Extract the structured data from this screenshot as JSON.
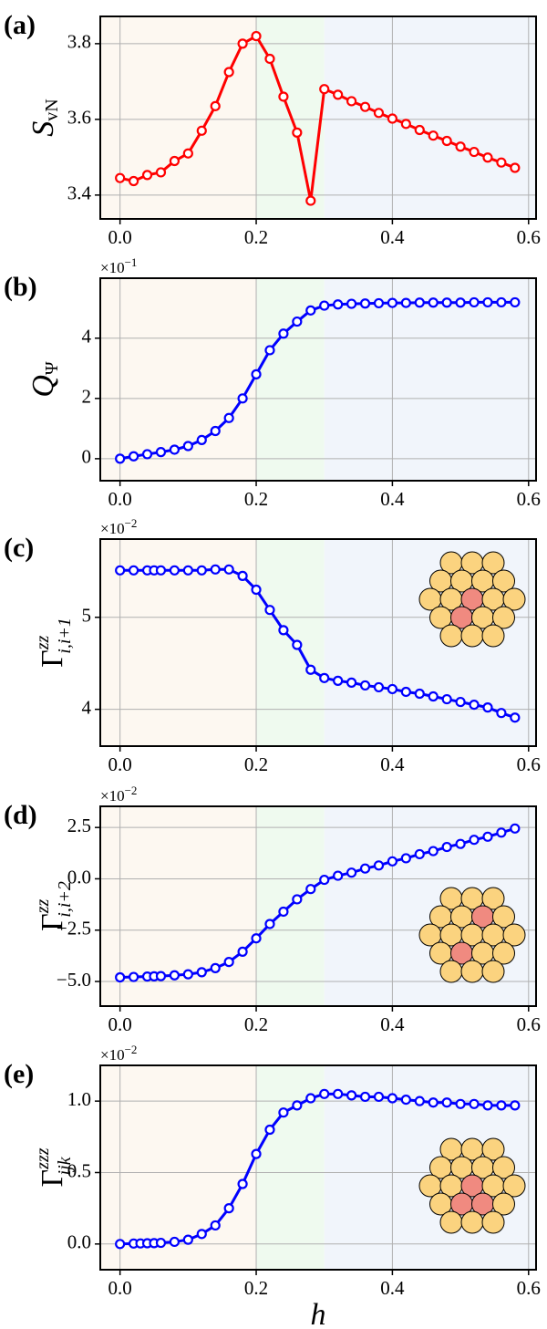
{
  "chart_data": [
    {
      "type": "line",
      "panel_label": "(a)",
      "ylabel": "S",
      "ylabel_sub": "vN",
      "x": [
        0,
        0.02,
        0.04,
        0.06,
        0.08,
        0.1,
        0.12,
        0.14,
        0.16,
        0.18,
        0.2,
        0.22,
        0.24,
        0.26,
        0.28,
        0.3,
        0.32,
        0.34,
        0.36,
        0.38,
        0.4,
        0.42,
        0.44,
        0.46,
        0.48,
        0.5,
        0.52,
        0.54,
        0.56,
        0.58
      ],
      "values": [
        3.445,
        3.437,
        3.453,
        3.46,
        3.49,
        3.51,
        3.57,
        3.635,
        3.725,
        3.8,
        3.82,
        3.76,
        3.66,
        3.565,
        3.385,
        3.68,
        3.665,
        3.648,
        3.633,
        3.617,
        3.602,
        3.588,
        3.572,
        3.557,
        3.543,
        3.528,
        3.514,
        3.499,
        3.486,
        3.472
      ],
      "color": "#ff0000",
      "xlim": [
        -0.029,
        0.611
      ],
      "ylim": [
        3.337,
        3.872
      ],
      "xticks": [
        {
          "value": 0,
          "label": "0.0"
        },
        {
          "value": 0.2,
          "label": "0.2"
        },
        {
          "value": 0.4,
          "label": "0.4"
        },
        {
          "value": 0.6,
          "label": "0.6"
        }
      ],
      "yticks": [
        3.4,
        3.6,
        3.8
      ],
      "grid": true,
      "region_bounds": [
        0.2,
        0.3
      ],
      "region_colors": [
        "#fdf8f1",
        "#effaef",
        "#f1f5fb"
      ]
    },
    {
      "type": "line",
      "panel_label": "(b)",
      "ylabel": "Q",
      "ylabel_sub": "Ψ",
      "offset_text": "×10",
      "offset_exp": "−1",
      "x": [
        0,
        0.02,
        0.04,
        0.06,
        0.08,
        0.1,
        0.12,
        0.14,
        0.16,
        0.18,
        0.2,
        0.22,
        0.24,
        0.26,
        0.28,
        0.3,
        0.32,
        0.34,
        0.36,
        0.38,
        0.4,
        0.42,
        0.44,
        0.46,
        0.48,
        0.5,
        0.52,
        0.54,
        0.56,
        0.58
      ],
      "values": [
        0,
        0.08,
        0.15,
        0.22,
        0.3,
        0.42,
        0.62,
        0.92,
        1.35,
        2.0,
        2.8,
        3.6,
        4.15,
        4.55,
        4.92,
        5.08,
        5.12,
        5.14,
        5.15,
        5.16,
        5.17,
        5.17,
        5.18,
        5.18,
        5.18,
        5.18,
        5.19,
        5.19,
        5.19,
        5.19
      ],
      "color": "#0000ff",
      "xlim": [
        -0.029,
        0.611
      ],
      "ylim": [
        -0.73,
        5.99
      ],
      "xticks": [
        {
          "value": 0,
          "label": "0.0"
        },
        {
          "value": 0.2,
          "label": "0.2"
        },
        {
          "value": 0.4,
          "label": "0.4"
        },
        {
          "value": 0.6,
          "label": "0.6"
        }
      ],
      "yticks": [
        0,
        2,
        4
      ],
      "grid": true,
      "region_bounds": [
        0.2,
        0.3
      ],
      "region_colors": [
        "#fdf8f1",
        "#effaef",
        "#f1f5fb"
      ]
    },
    {
      "type": "line",
      "panel_label": "(c)",
      "ylabel": "Γ",
      "ylabel_sup": "zz",
      "ylabel_sub": "i,i+1",
      "offset_text": "×10",
      "offset_exp": "−2",
      "x": [
        0,
        0.02,
        0.04,
        0.05,
        0.06,
        0.08,
        0.1,
        0.12,
        0.14,
        0.16,
        0.18,
        0.2,
        0.22,
        0.24,
        0.26,
        0.28,
        0.3,
        0.32,
        0.34,
        0.36,
        0.38,
        0.4,
        0.42,
        0.44,
        0.46,
        0.48,
        0.5,
        0.52,
        0.54,
        0.56,
        0.58
      ],
      "values": [
        5.51,
        5.51,
        5.51,
        5.51,
        5.51,
        5.51,
        5.51,
        5.51,
        5.52,
        5.52,
        5.45,
        5.3,
        5.08,
        4.86,
        4.7,
        4.43,
        4.34,
        4.31,
        4.29,
        4.26,
        4.24,
        4.22,
        4.19,
        4.17,
        4.14,
        4.11,
        4.08,
        4.05,
        4.02,
        3.96,
        3.91
      ],
      "color": "#0000ff",
      "xlim": [
        -0.029,
        0.611
      ],
      "ylim": [
        3.6,
        5.85
      ],
      "xticks": [
        {
          "value": 0,
          "label": "0.0"
        },
        {
          "value": 0.2,
          "label": "0.2"
        },
        {
          "value": 0.4,
          "label": "0.4"
        },
        {
          "value": 0.6,
          "label": "0.6"
        }
      ],
      "yticks": [
        4,
        5
      ],
      "grid": true,
      "region_bounds": [
        0.2,
        0.3
      ],
      "region_colors": [
        "#fdf8f1",
        "#effaef",
        "#f1f5fb"
      ]
    },
    {
      "type": "line",
      "panel_label": "(d)",
      "ylabel": "Γ",
      "ylabel_sup": "zz",
      "ylabel_sub": "i,i+2",
      "offset_text": "×10",
      "offset_exp": "−2",
      "x": [
        0,
        0.02,
        0.04,
        0.05,
        0.06,
        0.08,
        0.1,
        0.12,
        0.14,
        0.16,
        0.18,
        0.2,
        0.22,
        0.24,
        0.26,
        0.28,
        0.3,
        0.32,
        0.34,
        0.36,
        0.38,
        0.4,
        0.42,
        0.44,
        0.46,
        0.48,
        0.5,
        0.52,
        0.54,
        0.56,
        0.58
      ],
      "values": [
        -4.8,
        -4.78,
        -4.76,
        -4.75,
        -4.74,
        -4.7,
        -4.65,
        -4.55,
        -4.35,
        -4.05,
        -3.55,
        -2.9,
        -2.2,
        -1.6,
        -1.0,
        -0.5,
        -0.05,
        0.15,
        0.3,
        0.5,
        0.65,
        0.85,
        1.0,
        1.2,
        1.35,
        1.55,
        1.7,
        1.9,
        2.05,
        2.25,
        2.45
      ],
      "color": "#0000ff",
      "xlim": [
        -0.029,
        0.611
      ],
      "ylim": [
        -6.2,
        3.53
      ],
      "xticks": [
        {
          "value": 0,
          "label": "0.0"
        },
        {
          "value": 0.2,
          "label": "0.2"
        },
        {
          "value": 0.4,
          "label": "0.4"
        },
        {
          "value": 0.6,
          "label": "0.6"
        }
      ],
      "yticks": [
        {
          "value": -5,
          "label": "−5.0"
        },
        {
          "value": -2.5,
          "label": "−2.5"
        },
        {
          "value": 0,
          "label": "0.0"
        },
        2.5
      ],
      "grid": true,
      "region_bounds": [
        0.2,
        0.3
      ],
      "region_colors": [
        "#fdf8f1",
        "#effaef",
        "#f1f5fb"
      ]
    },
    {
      "type": "line",
      "panel_label": "(e)",
      "ylabel": "Γ",
      "ylabel_sup": "zzz",
      "ylabel_sub": "ijk",
      "offset_text": "×10",
      "offset_exp": "−2",
      "xlabel": "h",
      "x": [
        0,
        0.02,
        0.03,
        0.04,
        0.05,
        0.06,
        0.08,
        0.1,
        0.12,
        0.14,
        0.16,
        0.18,
        0.2,
        0.22,
        0.24,
        0.26,
        0.28,
        0.3,
        0.32,
        0.34,
        0.36,
        0.38,
        0.4,
        0.42,
        0.44,
        0.46,
        0.48,
        0.5,
        0.52,
        0.54,
        0.56,
        0.58
      ],
      "values": [
        0,
        0.003,
        0.004,
        0.005,
        0.006,
        0.008,
        0.015,
        0.03,
        0.07,
        0.13,
        0.25,
        0.42,
        0.63,
        0.8,
        0.92,
        0.97,
        1.02,
        1.05,
        1.05,
        1.04,
        1.03,
        1.03,
        1.02,
        1.01,
        1.0,
        0.99,
        0.99,
        0.98,
        0.98,
        0.97,
        0.97,
        0.97
      ],
      "color": "#0000ff",
      "xlim": [
        -0.029,
        0.611
      ],
      "ylim": [
        -0.18,
        1.25
      ],
      "xticks": [
        {
          "value": 0,
          "label": "0.0"
        },
        {
          "value": 0.2,
          "label": "0.2"
        },
        {
          "value": 0.4,
          "label": "0.4"
        },
        {
          "value": 0.6,
          "label": "0.6"
        }
      ],
      "yticks": [
        {
          "value": 0,
          "label": "0.0"
        },
        0.5,
        {
          "value": 1,
          "label": "1.0"
        }
      ],
      "grid": true,
      "region_bounds": [
        0.2,
        0.3
      ],
      "region_colors": [
        "#fdf8f1",
        "#effaef",
        "#f1f5fb"
      ]
    }
  ]
}
